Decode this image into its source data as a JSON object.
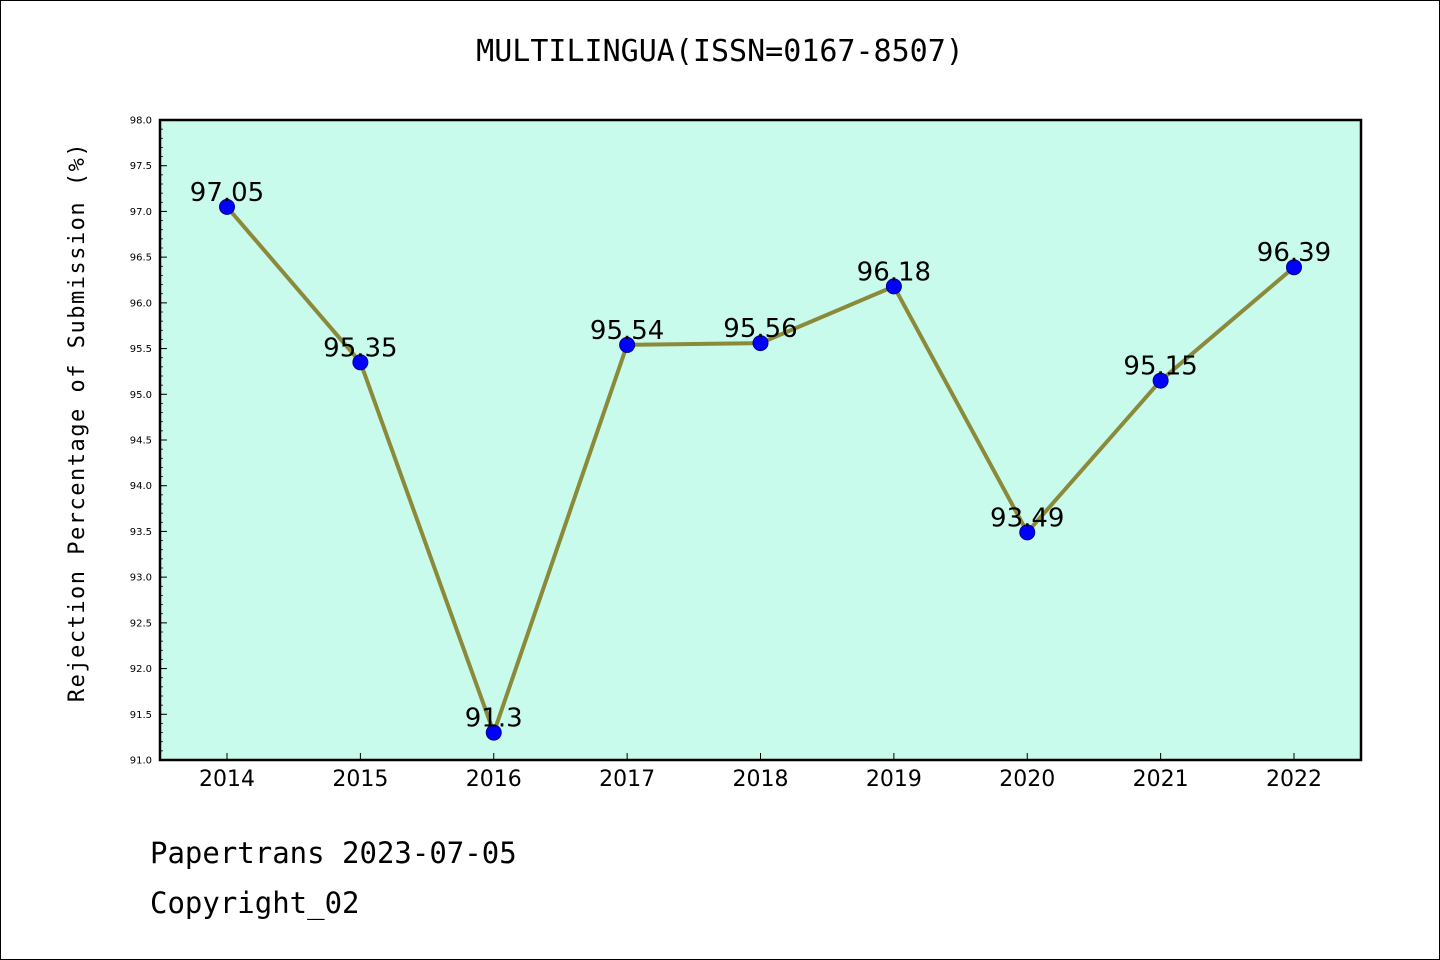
{
  "chart_data": {
    "type": "line",
    "title": "MULTILINGUA(ISSN=0167-8507)",
    "xlabel": "",
    "ylabel": "Rejection Percentage of Submission (%)",
    "categories": [
      "2014",
      "2015",
      "2016",
      "2017",
      "2018",
      "2019",
      "2020",
      "2021",
      "2022"
    ],
    "values": [
      97.05,
      95.35,
      91.3,
      95.54,
      95.56,
      96.18,
      93.49,
      95.15,
      96.39
    ],
    "data_labels": [
      "97.05",
      "95.35",
      "91.3",
      "95.54",
      "95.56",
      "96.18",
      "93.49",
      "95.15",
      "96.39"
    ],
    "ylim": [
      91.0,
      98.0
    ],
    "yticks": [
      "91.0",
      "91.5",
      "92.0",
      "92.5",
      "93.0",
      "93.5",
      "94.0",
      "94.5",
      "95.0",
      "95.5",
      "96.0",
      "96.5",
      "97.0",
      "97.5",
      "98.0"
    ],
    "grid": false,
    "colors": {
      "plot_background": "#c8fbec",
      "line": "#8b8a3a",
      "marker": "#0000ff"
    }
  },
  "footer": {
    "line1": "Papertrans 2023-07-05",
    "line2": "Copyright_02"
  }
}
